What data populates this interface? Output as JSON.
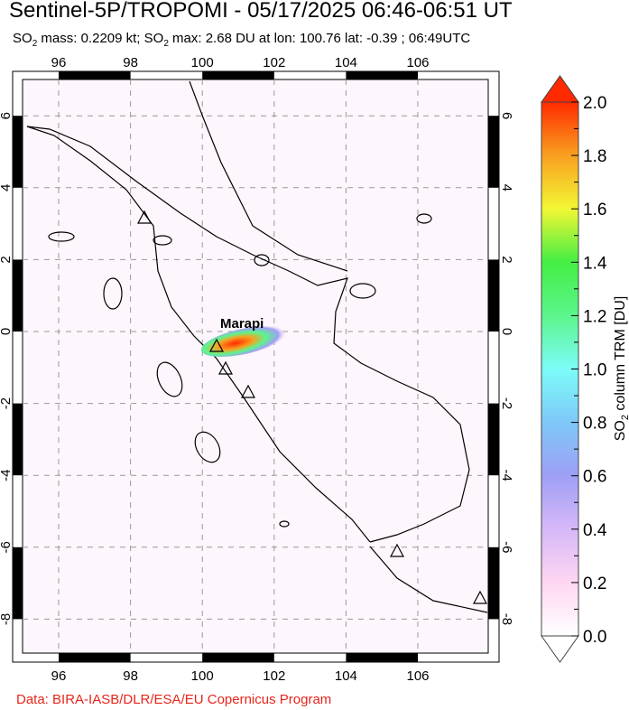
{
  "title": "Sentinel-5P/TROPOMI - 05/17/2025 06:46-06:51 UT",
  "subtitle": {
    "p1": "SO",
    "sub1": "2",
    "p2": " mass: 0.2209 kt; SO",
    "sub2": "2",
    "p3": " max: 2.68 DU at lon: 100.76 lat: -0.39 ; 06:49UTC"
  },
  "credit": "Data: BIRA-IASB/DLR/ESA/EU Copernicus Program",
  "map": {
    "lon_ticks": [
      "96",
      "98",
      "100",
      "102",
      "104",
      "106"
    ],
    "lat_ticks": [
      "6",
      "4",
      "2",
      "0",
      "-2",
      "-4",
      "-6",
      "-8"
    ],
    "volcano_label": "Marapi",
    "colors": {
      "coast": "#000000",
      "grid": "#999999",
      "plume_high": "#e8251b"
    }
  },
  "colorbar": {
    "ticks": [
      "2.0",
      "1.8",
      "1.6",
      "1.4",
      "1.2",
      "1.0",
      "0.8",
      "0.6",
      "0.4",
      "0.2",
      "0.0"
    ],
    "label_p1": "SO",
    "label_sub": "2",
    "label_p2": " column TRM [DU]",
    "range": [
      0.0,
      2.0
    ],
    "stops": [
      "#ffffff",
      "#ffd6f2",
      "#d6b8f8",
      "#9f9ff5",
      "#7ec8f8",
      "#7cfcf8",
      "#5cf58c",
      "#44ee44",
      "#f2f734",
      "#f9a020",
      "#ff2a00"
    ]
  }
}
